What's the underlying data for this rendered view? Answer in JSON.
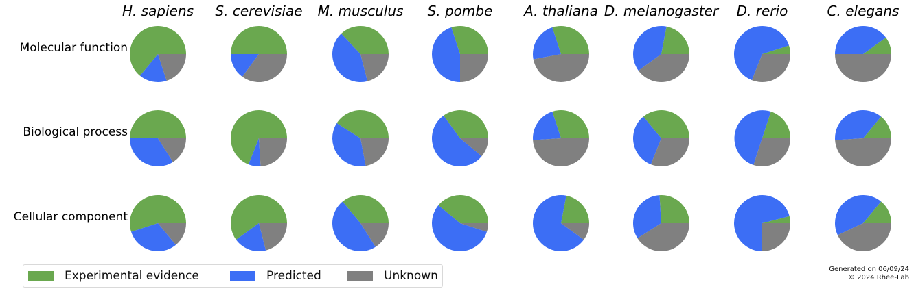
{
  "chart_data": {
    "type": "pie",
    "species": [
      "H. sapiens",
      "S. cerevisiae",
      "M. musculus",
      "S. pombe",
      "A. thaliana",
      "D. melanogaster",
      "D. rerio",
      "C. elegans"
    ],
    "categories": [
      "Molecular function",
      "Biological process",
      "Cellular component"
    ],
    "series": [
      {
        "name": "Experimental evidence",
        "color": "#6aa84f"
      },
      {
        "name": "Predicted",
        "color": "#3c6ef5"
      },
      {
        "name": "Unknown",
        "color": "#808080"
      }
    ],
    "values": [
      [
        [
          0.64,
          0.16,
          0.2
        ],
        [
          0.5,
          0.15,
          0.35
        ],
        [
          0.37,
          0.42,
          0.21
        ],
        [
          0.3,
          0.45,
          0.25
        ],
        [
          0.3,
          0.23,
          0.47
        ],
        [
          0.22,
          0.38,
          0.4
        ],
        [
          0.05,
          0.64,
          0.31
        ],
        [
          0.1,
          0.4,
          0.5
        ]
      ],
      [
        [
          0.5,
          0.34,
          0.16
        ],
        [
          0.69,
          0.07,
          0.24
        ],
        [
          0.41,
          0.37,
          0.22
        ],
        [
          0.35,
          0.54,
          0.11
        ],
        [
          0.3,
          0.21,
          0.49
        ],
        [
          0.36,
          0.33,
          0.31
        ],
        [
          0.2,
          0.5,
          0.3
        ],
        [
          0.14,
          0.37,
          0.49
        ]
      ],
      [
        [
          0.55,
          0.31,
          0.14
        ],
        [
          0.6,
          0.19,
          0.21
        ],
        [
          0.36,
          0.48,
          0.16
        ],
        [
          0.39,
          0.56,
          0.05
        ],
        [
          0.22,
          0.68,
          0.1
        ],
        [
          0.26,
          0.33,
          0.41
        ],
        [
          0.04,
          0.71,
          0.25
        ],
        [
          0.14,
          0.43,
          0.43
        ]
      ]
    ],
    "start_angle_deg": 0,
    "direction": "counterclockwise"
  },
  "legend": {
    "items": [
      {
        "label": "Experimental evidence",
        "color": "#6aa84f"
      },
      {
        "label": "Predicted",
        "color": "#3c6ef5"
      },
      {
        "label": "Unknown",
        "color": "#808080"
      }
    ]
  },
  "footer": {
    "line1": "Generated on 06/09/24",
    "line2": "© 2024 Rhee-Lab"
  }
}
